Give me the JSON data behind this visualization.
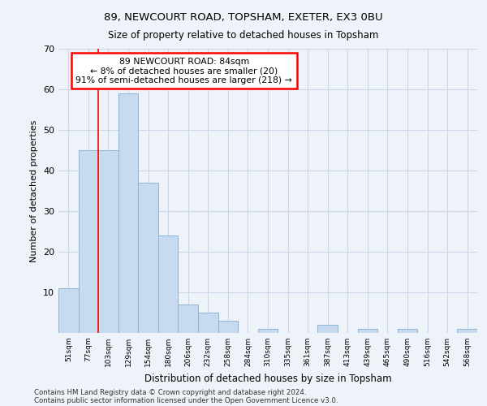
{
  "title1": "89, NEWCOURT ROAD, TOPSHAM, EXETER, EX3 0BU",
  "title2": "Size of property relative to detached houses in Topsham",
  "xlabel": "Distribution of detached houses by size in Topsham",
  "ylabel": "Number of detached properties",
  "categories": [
    "51sqm",
    "77sqm",
    "103sqm",
    "129sqm",
    "154sqm",
    "180sqm",
    "206sqm",
    "232sqm",
    "258sqm",
    "284sqm",
    "310sqm",
    "335sqm",
    "361sqm",
    "387sqm",
    "413sqm",
    "439sqm",
    "465sqm",
    "490sqm",
    "516sqm",
    "542sqm",
    "568sqm"
  ],
  "values": [
    11,
    45,
    45,
    59,
    37,
    24,
    7,
    5,
    3,
    0,
    1,
    0,
    0,
    2,
    0,
    1,
    0,
    1,
    0,
    0,
    1
  ],
  "bar_color": "#c8daf0",
  "bar_edge_color": "#8ab4d8",
  "annotation_lines": [
    "89 NEWCOURT ROAD: 84sqm",
    "← 8% of detached houses are smaller (20)",
    "91% of semi-detached houses are larger (218) →"
  ],
  "red_line_x": 1.5,
  "ylim": [
    0,
    70
  ],
  "yticks": [
    0,
    10,
    20,
    30,
    40,
    50,
    60,
    70
  ],
  "grid_color": "#ccd6e8",
  "annotation_box_color": "white",
  "annotation_box_edge": "red",
  "footnote1": "Contains HM Land Registry data © Crown copyright and database right 2024.",
  "footnote2": "Contains public sector information licensed under the Open Government Licence v3.0.",
  "bg_color": "#eef2f9"
}
